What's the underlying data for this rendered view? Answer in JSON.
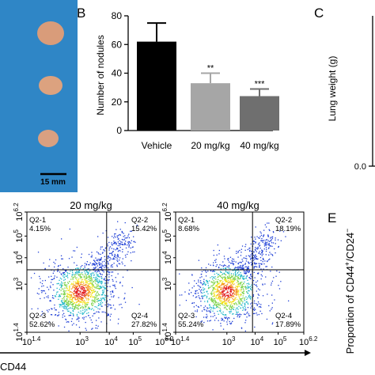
{
  "panels": {
    "B": {
      "letter": "B"
    },
    "C": {
      "letter": "C"
    },
    "E": {
      "letter": "E"
    }
  },
  "photo": {
    "scale_bar_label": "15 mm",
    "background": "#2f86c6"
  },
  "chart_data": [
    {
      "type": "bar",
      "panel": "B",
      "categories": [
        "Vehicle",
        "20 mg/kg",
        "40 mg/kg"
      ],
      "values": [
        62,
        33,
        24
      ],
      "errors": [
        13,
        7,
        5
      ],
      "significance": [
        "",
        "**",
        "***"
      ],
      "colors": [
        "#000000",
        "#a6a6a6",
        "#6f6f6f"
      ],
      "ylabel": "Number of nodules",
      "ylim": [
        0,
        80
      ],
      "yticks": [
        "0",
        "20",
        "40",
        "60",
        "80"
      ]
    },
    {
      "type": "bar",
      "panel": "C",
      "ylabel": "Lung weight (g)",
      "yticks": [
        "0.0"
      ]
    },
    {
      "type": "scatter",
      "panel": "flow-20",
      "title": "20 mg/kg",
      "xlabel": "CD44",
      "xticks": [
        "10",
        "10",
        "10",
        "10",
        "10"
      ],
      "xtick_exps": [
        "1.4",
        "3",
        "4",
        "5",
        "6.2"
      ],
      "yticks": [
        "10",
        "10",
        "10",
        "10",
        "10"
      ],
      "ytick_exps": [
        "1.4",
        "3",
        "4",
        "5",
        "6.2"
      ],
      "quadrants": [
        {
          "name": "Q2-1",
          "value": "4.15%"
        },
        {
          "name": "Q2-2",
          "value": "15.42%"
        },
        {
          "name": "Q2-3",
          "value": "52.62%"
        },
        {
          "name": "Q2-4",
          "value": "27.82%"
        }
      ]
    },
    {
      "type": "scatter",
      "panel": "flow-40",
      "title": "40 mg/kg",
      "xticks": [
        "10",
        "10",
        "10",
        "10",
        "10"
      ],
      "xtick_exps": [
        "1.4",
        "3",
        "4",
        "5",
        "6.2"
      ],
      "yticks": [
        "10",
        "10",
        "10",
        "10",
        "10"
      ],
      "ytick_exps": [
        "1.4",
        "3",
        "4",
        "5",
        "6.2"
      ],
      "quadrants": [
        {
          "name": "Q2-1",
          "value": "8.68%"
        },
        {
          "name": "Q2-2",
          "value": "18.19%"
        },
        {
          "name": "Q2-3",
          "value": "55.24%"
        },
        {
          "name": "Q2-4",
          "value": "17.89%"
        }
      ]
    },
    {
      "type": "bar",
      "panel": "E",
      "ylabel_main": "Proportion of CD44",
      "ylabel_sup1": "+",
      "ylabel_mid": "/CD24",
      "ylabel_sup2": "−"
    }
  ]
}
